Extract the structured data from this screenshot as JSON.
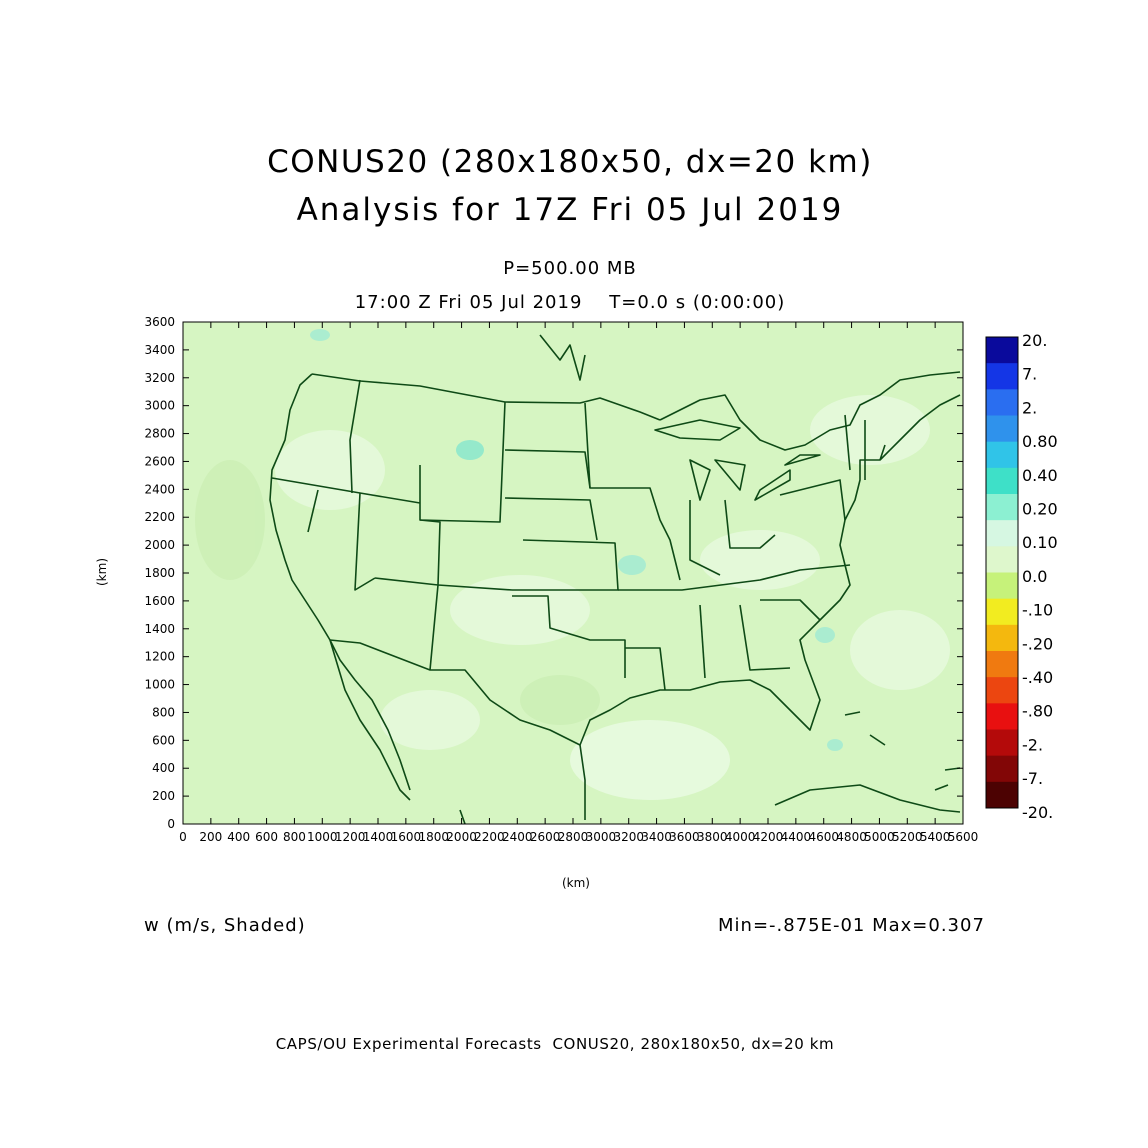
{
  "header": {
    "title_line1": "CONUS20 (280x180x50, dx=20 km)",
    "title_line2": "Analysis for 17Z Fri 05 Jul 2019",
    "level": "P=500.00 MB",
    "time": "17:00 Z Fri 05 Jul 2019    T=0.0 s (0:00:00)"
  },
  "axes": {
    "x_label": "(km)",
    "y_label": "(km)",
    "x_ticks": [
      "0",
      "200",
      "400",
      "600",
      "800",
      "1000",
      "1200",
      "1400",
      "1600",
      "1800",
      "2000",
      "2200",
      "2400",
      "2600",
      "2800",
      "3000",
      "3200",
      "3400",
      "3600",
      "3800",
      "4000",
      "4200",
      "4400",
      "4600",
      "4800",
      "5000",
      "5200",
      "5400",
      "5600"
    ],
    "y_ticks": [
      "0",
      "200",
      "400",
      "600",
      "800",
      "1000",
      "1200",
      "1400",
      "1600",
      "1800",
      "2000",
      "2200",
      "2400",
      "2600",
      "2800",
      "3000",
      "3200",
      "3400",
      "3600"
    ],
    "x_range": [
      0,
      5600
    ],
    "y_range": [
      0,
      3600
    ]
  },
  "colorbar": {
    "labels": [
      "20.",
      "7.",
      "2.",
      "0.80",
      "0.40",
      "0.20",
      "0.10",
      "0.0",
      "-.10",
      "-.20",
      "-.40",
      "-.80",
      "-2.",
      "-7.",
      "-20."
    ],
    "colors": [
      "#0a0a9c",
      "#1436e6",
      "#2a6ef0",
      "#2f92ec",
      "#30c4e8",
      "#3ee0c8",
      "#8cf0d2",
      "#d6f7e2",
      "#def7cc",
      "#c6f27a",
      "#f2ec20",
      "#f4b80e",
      "#f07a10",
      "#ec4610",
      "#e81010",
      "#b40a0a",
      "#820606",
      "#4c0202"
    ]
  },
  "field": {
    "variable_label": "w (m/s, Shaded)",
    "min_max": "Min=-.875E-01 Max=0.307",
    "background_color": "#d6f5c2",
    "boundary_color": "#0e4a16"
  },
  "footer": {
    "text": "CAPS/OU Experimental Forecasts  CONUS20, 280x180x50, dx=20 km"
  }
}
